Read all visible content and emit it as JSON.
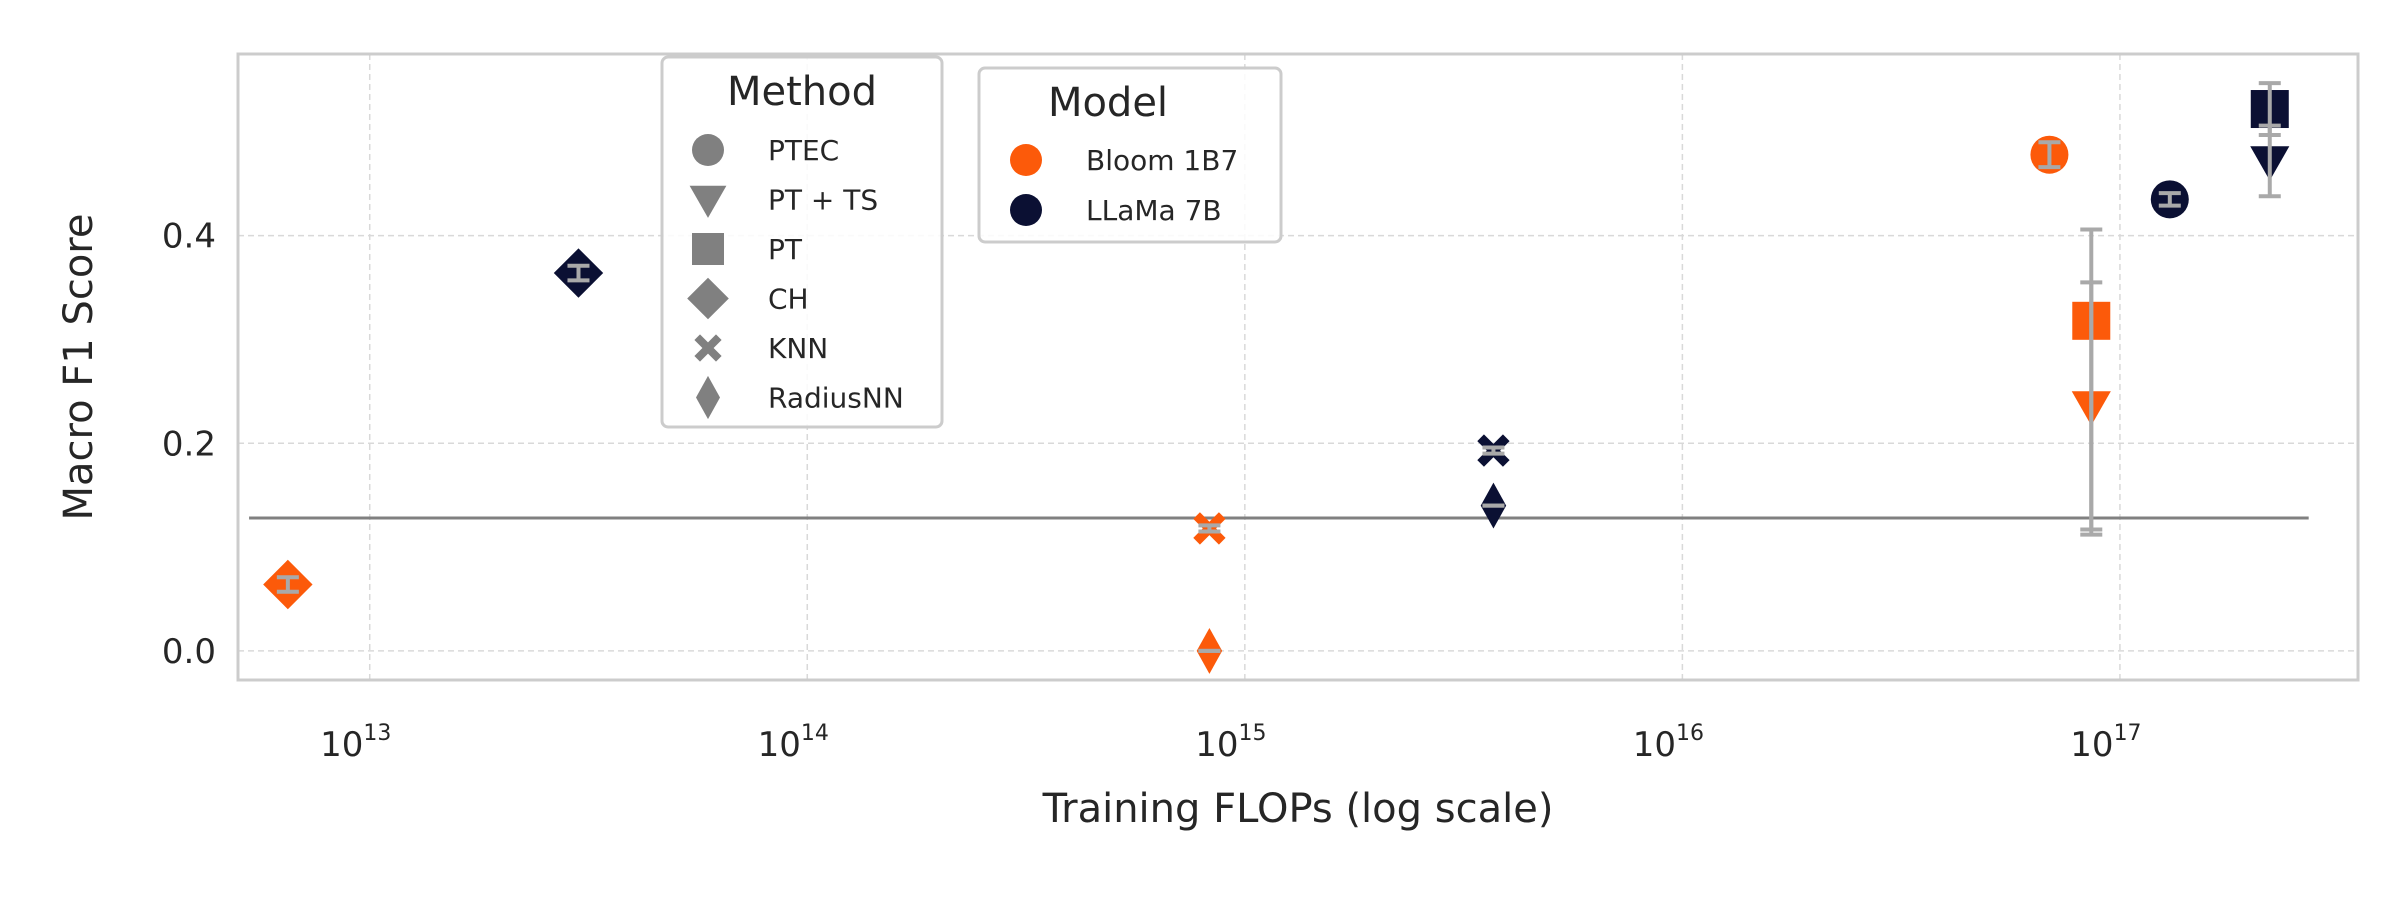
{
  "chart_data": {
    "type": "scatter",
    "xlabel": "Training FLOPs (log scale)",
    "ylabel": "Macro F1 Score",
    "x_scale": "log",
    "xlim": [
      5000000000000.0,
      3.5e+17
    ],
    "ylim": [
      -0.028,
      0.575
    ],
    "x_ticks": [
      {
        "value": 10000000000000.0,
        "base": "10",
        "exp": "13"
      },
      {
        "value": 100000000000000.0,
        "base": "10",
        "exp": "14"
      },
      {
        "value": 1000000000000000.0,
        "base": "10",
        "exp": "15"
      },
      {
        "value": 1e+16,
        "base": "10",
        "exp": "16"
      },
      {
        "value": 1e+17,
        "base": "10",
        "exp": "17"
      }
    ],
    "y_ticks": [
      {
        "value": 0.0,
        "label": "0.0"
      },
      {
        "value": 0.2,
        "label": "0.2"
      },
      {
        "value": 0.4,
        "label": "0.4"
      }
    ],
    "grid": true,
    "baseline": {
      "y": 0.128,
      "x_start": 5300000000000.0,
      "x_end": 2.7e+17,
      "color": "#808080"
    },
    "colors": {
      "Bloom 1B7": "#fc5a0a",
      "LLaMa 7B": "#0b1033",
      "errorbar": "#a9a9a9",
      "legend_marker": "#808080"
    },
    "legend_method": {
      "title": "Method",
      "placement": "top-left-center",
      "entries": [
        {
          "label": "PTEC",
          "marker": "circle"
        },
        {
          "label": "PT + TS",
          "marker": "triangle-down"
        },
        {
          "label": "PT",
          "marker": "square"
        },
        {
          "label": "CH",
          "marker": "diamond"
        },
        {
          "label": "KNN",
          "marker": "x"
        },
        {
          "label": "RadiusNN",
          "marker": "thin-diamond"
        }
      ]
    },
    "legend_model": {
      "title": "Model",
      "placement": "top-center",
      "entries": [
        {
          "label": "Bloom 1B7",
          "color": "#fc5a0a"
        },
        {
          "label": "LLaMa 7B",
          "color": "#0b1033"
        }
      ]
    },
    "points": [
      {
        "model": "Bloom 1B7",
        "method": "CH",
        "x": 6500000000000.0,
        "y": 0.064,
        "err_low": 0.057,
        "err_high": 0.071
      },
      {
        "model": "LLaMa 7B",
        "method": "CH",
        "x": 30000000000000.0,
        "y": 0.364,
        "err_low": 0.357,
        "err_high": 0.371
      },
      {
        "model": "Bloom 1B7",
        "method": "KNN",
        "x": 830000000000000.0,
        "y": 0.118,
        "err_low": 0.115,
        "err_high": 0.121
      },
      {
        "model": "Bloom 1B7",
        "method": "RadiusNN",
        "x": 830000000000000.0,
        "y": 0.0,
        "err_low": 0.0,
        "err_high": 0.0
      },
      {
        "model": "LLaMa 7B",
        "method": "KNN",
        "x": 3700000000000000.0,
        "y": 0.193,
        "err_low": 0.19,
        "err_high": 0.196
      },
      {
        "model": "LLaMa 7B",
        "method": "RadiusNN",
        "x": 3700000000000000.0,
        "y": 0.14,
        "err_low": 0.14,
        "err_high": 0.14
      },
      {
        "model": "Bloom 1B7",
        "method": "PTEC",
        "x": 6.9e+16,
        "y": 0.478,
        "err_low": 0.466,
        "err_high": 0.49
      },
      {
        "model": "Bloom 1B7",
        "method": "PT",
        "x": 8.6e+16,
        "y": 0.318,
        "err_low": 0.112,
        "err_high": 0.406
      },
      {
        "model": "Bloom 1B7",
        "method": "PT + TS",
        "x": 8.6e+16,
        "y": 0.236,
        "err_low": 0.117,
        "err_high": 0.355
      },
      {
        "model": "LLaMa 7B",
        "method": "PTEC",
        "x": 1.3e+17,
        "y": 0.435,
        "err_low": 0.429,
        "err_high": 0.441
      },
      {
        "model": "LLaMa 7B",
        "method": "PT",
        "x": 2.2e+17,
        "y": 0.522,
        "err_low": 0.497,
        "err_high": 0.547
      },
      {
        "model": "LLaMa 7B",
        "method": "PT + TS",
        "x": 2.2e+17,
        "y": 0.472,
        "err_low": 0.438,
        "err_high": 0.506
      }
    ]
  }
}
